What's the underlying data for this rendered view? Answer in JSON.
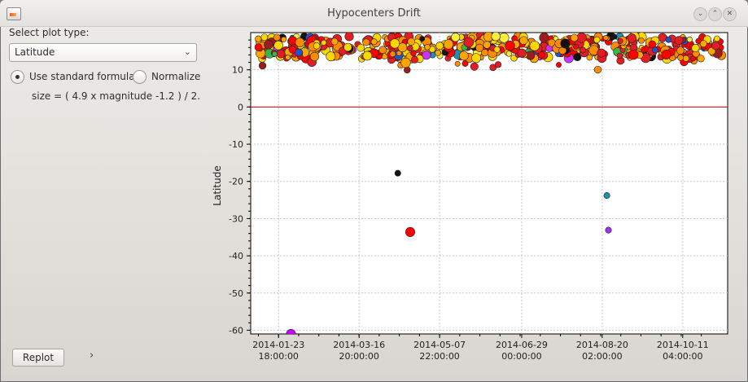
{
  "window": {
    "title": "Hypocenters Drift"
  },
  "controls": {
    "select_label": "Select plot type:",
    "plot_type": "Latitude",
    "radio_standard": "Use standard formula",
    "radio_normalize": "Normalize",
    "formula": "size = ( 4.9 x magnitude -1.2 ) / 2.",
    "replot": "Replot",
    "more": "›"
  },
  "chart_data": {
    "type": "scatter",
    "ylabel": "Latitude",
    "xlabel": "",
    "ylim": [
      -61,
      20
    ],
    "yticks": [
      10,
      0,
      -10,
      -20,
      -30,
      -40,
      -50,
      -60
    ],
    "xticks": [
      {
        "t": 0,
        "l1": "2014-01-23",
        "l2": "18:00:00"
      },
      {
        "t": 52,
        "l1": "2014-03-16",
        "l2": "20:00:00"
      },
      {
        "t": 104,
        "l1": "2014-05-07",
        "l2": "22:00:00"
      },
      {
        "t": 157,
        "l1": "2014-06-29",
        "l2": "00:00:00"
      },
      {
        "t": 209,
        "l1": "2014-08-20",
        "l2": "02:00:00"
      },
      {
        "t": 261,
        "l1": "2014-10-11",
        "l2": "04:00:00"
      }
    ],
    "xlim_days": [
      -18,
      290
    ],
    "reference_line": {
      "y": 0,
      "color": "#d40000"
    },
    "grid": true,
    "color_palette": [
      "#ff0000",
      "#ff8c00",
      "#ffd700",
      "#ffa500",
      "#e51c23",
      "#39b54a",
      "#2255cc",
      "#cc33ff",
      "#1f8fb0",
      "#111111",
      "#9e1c1c",
      "#f7ef3a"
    ],
    "outliers": [
      {
        "day": 77,
        "lat": -17.8,
        "mag": 3.0,
        "color": "#111111"
      },
      {
        "day": 85,
        "lat": -33.6,
        "mag": 4.5,
        "color": "#ff0000"
      },
      {
        "day": 212,
        "lat": -23.8,
        "mag": 3.0,
        "color": "#1f8fb0"
      },
      {
        "day": 213,
        "lat": -33.1,
        "mag": 3.0,
        "color": "#9b30ff"
      },
      {
        "day": 8,
        "lat": -61.0,
        "mag": 4.5,
        "color": "#cc00ff"
      }
    ],
    "note": "dense band of several hundred hypocenters between latitude ~9 and ~19 across the whole time range"
  }
}
